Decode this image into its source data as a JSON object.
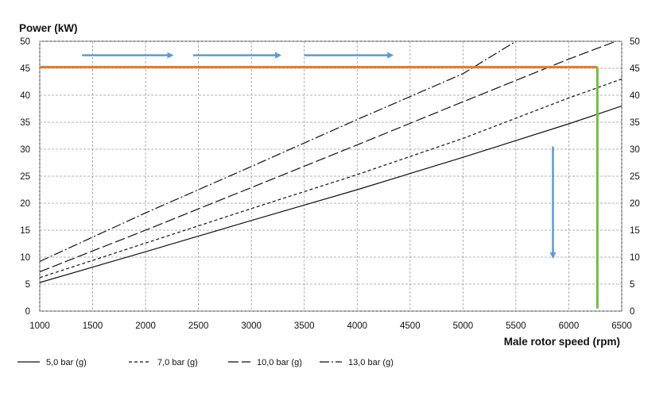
{
  "chart_data": {
    "type": "line",
    "ylabel": "Power (kW)",
    "xlabel": "Male rotor speed (rpm)",
    "xlim": [
      1000,
      6500
    ],
    "ylim": [
      0,
      50
    ],
    "x_ticks": [
      1000,
      1500,
      2000,
      2500,
      3000,
      3500,
      4000,
      4500,
      5000,
      5500,
      6000,
      6500
    ],
    "y_ticks": [
      0,
      5,
      10,
      15,
      20,
      25,
      30,
      35,
      40,
      45,
      50
    ],
    "grid": true,
    "right_axis": true,
    "legend_position": "bottom",
    "series": [
      {
        "name": "5,0 bar (g)",
        "style": "solid",
        "x": [
          1000,
          2000,
          3000,
          4000,
          5000,
          6000,
          6500
        ],
        "y": [
          5.3,
          11.0,
          16.8,
          22.5,
          28.5,
          34.7,
          38.0
        ]
      },
      {
        "name": "7,0 bar (g)",
        "style": "dashed",
        "x": [
          1000,
          2000,
          3000,
          4000,
          5000,
          6000,
          6500
        ],
        "y": [
          6.2,
          12.6,
          19.0,
          25.3,
          32.0,
          39.5,
          43.0
        ]
      },
      {
        "name": "10,0 bar (g)",
        "style": "longdash",
        "x": [
          1000,
          2000,
          3000,
          4000,
          5000,
          6000,
          6500
        ],
        "y": [
          7.3,
          15.0,
          22.9,
          30.8,
          38.8,
          46.7,
          50.4
        ]
      },
      {
        "name": "13,0 bar (g)",
        "style": "dashdot",
        "x": [
          1000,
          2000,
          3000,
          4000,
          5000,
          5500
        ],
        "y": [
          9.2,
          18.2,
          26.8,
          35.5,
          44.0,
          50.0
        ]
      }
    ],
    "annotations": {
      "horizontal_limit": {
        "y": 45.2,
        "x_from": 1000,
        "x_to": 6270,
        "color": "#e8752a"
      },
      "vertical_limit": {
        "x": 6270,
        "y_from": 0.5,
        "y_to": 45.2,
        "color": "#6fbf44"
      },
      "arrow_color": "#5b9bd5",
      "right_arrows": [
        {
          "x_from": 1400,
          "x_to": 2250,
          "y": 47.4
        },
        {
          "x_from": 2450,
          "x_to": 3270,
          "y": 47.4
        },
        {
          "x_from": 3500,
          "x_to": 4330,
          "y": 47.4
        }
      ],
      "down_arrow": {
        "x": 5850,
        "y_from": 30.5,
        "y_to": 10.0
      }
    }
  }
}
